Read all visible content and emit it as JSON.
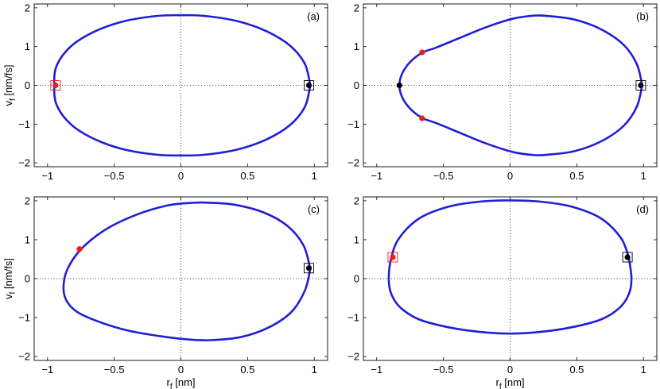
{
  "colors": {
    "curve": "#1f1fd6",
    "red_marker": "#ee1c1c",
    "black_marker": "#000000",
    "axis": "#000000",
    "zero_line": "#000000"
  },
  "chart_data": [
    {
      "type": "line",
      "panel_label": "(a)",
      "xlim": [
        -1.1,
        1.1
      ],
      "ylim": [
        -2.1,
        2.1
      ],
      "xticks": [
        -1,
        -0.5,
        0,
        0.5,
        1
      ],
      "xtick_labels": [
        "−1",
        "−0.5",
        "0",
        "0.5",
        "1"
      ],
      "yticks": [
        -2,
        -1,
        0,
        1,
        2
      ],
      "ytick_labels": [
        "−2",
        "−1",
        "0",
        "1",
        "2"
      ],
      "xlabel": "",
      "ylabel_main": "v",
      "ylabel_sub": "f",
      "ylabel_unit": " [nm/fs]",
      "grid": "dotted zero lines",
      "curve": {
        "x": [
          0.97,
          0.93,
          0.82,
          0.64,
          0.42,
          0.18,
          0.0,
          -0.18,
          -0.42,
          -0.64,
          -0.82,
          -0.93,
          -0.95,
          -0.93,
          -0.82,
          -0.64,
          -0.42,
          -0.18,
          0.0,
          0.18,
          0.42,
          0.64,
          0.82,
          0.93,
          0.97
        ],
        "y": [
          0.0,
          0.55,
          1.02,
          1.4,
          1.66,
          1.79,
          1.81,
          1.79,
          1.66,
          1.4,
          1.02,
          0.52,
          0.0,
          -0.52,
          -1.02,
          -1.4,
          -1.66,
          -1.79,
          -1.81,
          -1.79,
          -1.66,
          -1.4,
          -1.02,
          -0.55,
          0.0
        ]
      },
      "markers": [
        {
          "x": -0.94,
          "y": 0.0,
          "color": "red",
          "boxed": true
        },
        {
          "x": 0.96,
          "y": 0.0,
          "color": "black",
          "boxed": true
        }
      ]
    },
    {
      "type": "line",
      "panel_label": "(b)",
      "xlim": [
        -1.1,
        1.1
      ],
      "ylim": [
        -2.1,
        2.1
      ],
      "xticks": [
        -1,
        -0.5,
        0,
        0.5,
        1
      ],
      "xtick_labels": [
        "−1",
        "−0.5",
        "0",
        "0.5",
        "1"
      ],
      "yticks": [
        -2,
        -1,
        0,
        1,
        2
      ],
      "ytick_labels": [
        "−2",
        "−1",
        "0",
        "1",
        "2"
      ],
      "xlabel": "",
      "ylabel_main": "",
      "ylabel_sub": "",
      "ylabel_unit": "",
      "grid": "dotted zero lines",
      "curve": {
        "x": [
          0.99,
          0.95,
          0.85,
          0.68,
          0.48,
          0.28,
          0.18,
          0.02,
          -0.18,
          -0.38,
          -0.55,
          -0.66,
          -0.75,
          -0.81,
          -0.83,
          -0.81,
          -0.75,
          -0.66,
          -0.55,
          -0.38,
          -0.18,
          0.02,
          0.18,
          0.28,
          0.48,
          0.68,
          0.85,
          0.95,
          0.99
        ],
        "y": [
          0.0,
          0.55,
          1.05,
          1.45,
          1.7,
          1.79,
          1.8,
          1.72,
          1.5,
          1.22,
          0.98,
          0.84,
          0.6,
          0.3,
          0.0,
          -0.3,
          -0.6,
          -0.84,
          -0.98,
          -1.22,
          -1.5,
          -1.72,
          -1.8,
          -1.79,
          -1.7,
          -1.45,
          -1.05,
          -0.55,
          0.0
        ]
      },
      "markers": [
        {
          "x": -0.66,
          "y": 0.85,
          "color": "red",
          "boxed": false
        },
        {
          "x": -0.66,
          "y": -0.85,
          "color": "red",
          "boxed": false
        },
        {
          "x": -0.83,
          "y": 0.0,
          "color": "black",
          "boxed": false
        },
        {
          "x": 0.98,
          "y": 0.0,
          "color": "black",
          "boxed": true
        }
      ]
    },
    {
      "type": "line",
      "panel_label": "(c)",
      "xlim": [
        -1.1,
        1.1
      ],
      "ylim": [
        -2.1,
        2.1
      ],
      "xticks": [
        -1,
        -0.5,
        0,
        0.5,
        1
      ],
      "xtick_labels": [
        "−1",
        "−0.5",
        "0",
        "0.5",
        "1"
      ],
      "yticks": [
        -2,
        -1,
        0,
        1,
        2
      ],
      "ytick_labels": [
        "−2",
        "−1",
        "0",
        "1",
        "2"
      ],
      "xlabel_main": "r",
      "xlabel_sub": "f",
      "xlabel_unit": " [nm]",
      "ylabel_main": "v",
      "ylabel_sub": "f",
      "ylabel_unit": " [nm/fs]",
      "grid": "dotted zero lines",
      "curve": {
        "x": [
          0.97,
          0.92,
          0.8,
          0.62,
          0.4,
          0.2,
          0.1,
          -0.1,
          -0.35,
          -0.57,
          -0.75,
          -0.85,
          -0.88,
          -0.86,
          -0.78,
          -0.62,
          -0.4,
          -0.15,
          0.05,
          0.22,
          0.45,
          0.66,
          0.83,
          0.93,
          0.97
        ],
        "y": [
          0.25,
          0.85,
          1.35,
          1.7,
          1.9,
          1.95,
          1.95,
          1.88,
          1.62,
          1.25,
          0.75,
          0.25,
          -0.2,
          -0.55,
          -0.85,
          -1.1,
          -1.33,
          -1.48,
          -1.56,
          -1.58,
          -1.5,
          -1.25,
          -0.85,
          -0.3,
          0.25
        ]
      },
      "markers": [
        {
          "x": -0.76,
          "y": 0.76,
          "color": "red",
          "boxed": false
        },
        {
          "x": 0.96,
          "y": 0.27,
          "color": "black",
          "boxed": true
        }
      ]
    },
    {
      "type": "line",
      "panel_label": "(d)",
      "xlim": [
        -1.1,
        1.1
      ],
      "ylim": [
        -2.1,
        2.1
      ],
      "xticks": [
        -1,
        -0.5,
        0,
        0.5,
        1
      ],
      "xtick_labels": [
        "−1",
        "−0.5",
        "0",
        "0.5",
        "1"
      ],
      "yticks": [
        -2,
        -1,
        0,
        1,
        2
      ],
      "ytick_labels": [
        "−2",
        "−1",
        "0",
        "1",
        "2"
      ],
      "xlabel_main": "r",
      "xlabel_sub": "f",
      "xlabel_unit": " [nm]",
      "ylabel_main": "",
      "ylabel_sub": "",
      "ylabel_unit": "",
      "grid": "dotted zero lines",
      "curve": {
        "x": [
          0.89,
          0.83,
          0.68,
          0.46,
          0.22,
          0.0,
          -0.22,
          -0.46,
          -0.68,
          -0.83,
          -0.89,
          -0.91,
          -0.89,
          -0.82,
          -0.68,
          -0.46,
          -0.22,
          0.0,
          0.22,
          0.46,
          0.68,
          0.82,
          0.89,
          0.91,
          0.89
        ],
        "y": [
          0.55,
          1.05,
          1.55,
          1.85,
          1.98,
          2.01,
          1.98,
          1.85,
          1.55,
          1.05,
          0.55,
          0.0,
          -0.4,
          -0.75,
          -1.05,
          -1.25,
          -1.37,
          -1.41,
          -1.37,
          -1.25,
          -1.05,
          -0.75,
          -0.4,
          0.0,
          0.55
        ]
      },
      "markers": [
        {
          "x": -0.88,
          "y": 0.55,
          "color": "red",
          "boxed": true
        },
        {
          "x": 0.88,
          "y": 0.55,
          "color": "black",
          "boxed": true
        }
      ]
    }
  ]
}
